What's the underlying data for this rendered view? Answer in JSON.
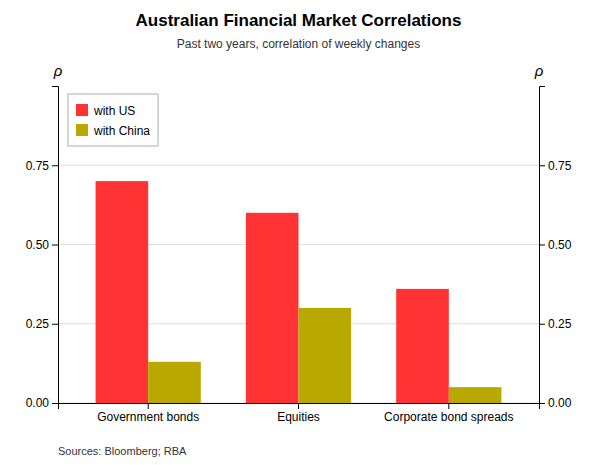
{
  "chart_data": {
    "type": "bar",
    "title": "Australian Financial Market Correlations",
    "subtitle": "Past two years, correlation of weekly changes",
    "categories": [
      "Government bonds",
      "Equities",
      "Corporate bond spreads"
    ],
    "series": [
      {
        "name": "with US",
        "color": "#FF3333",
        "values": [
          0.7,
          0.6,
          0.36
        ]
      },
      {
        "name": "with China",
        "color": "#B8A800",
        "values": [
          0.13,
          0.3,
          0.05
        ]
      }
    ],
    "ylim": [
      0,
      1.0
    ],
    "yticks": [
      {
        "value": 0,
        "label": "0.00"
      },
      0.25,
      {
        "value": 0.5,
        "label": "0.50"
      },
      {
        "value": 0.75,
        "label": "0.75"
      }
    ],
    "y2lim": [
      0,
      1.0
    ],
    "y2ticks": [
      {
        "value": 0,
        "label": "0.00"
      },
      0.25,
      {
        "value": 0.5,
        "label": "0.50"
      },
      {
        "value": 0.75,
        "label": "0.75"
      }
    ],
    "y_label": "ρ",
    "y2_label": "ρ",
    "source": "Sources:  Bloomberg; RBA",
    "grid": true,
    "legend": "upper left"
  }
}
